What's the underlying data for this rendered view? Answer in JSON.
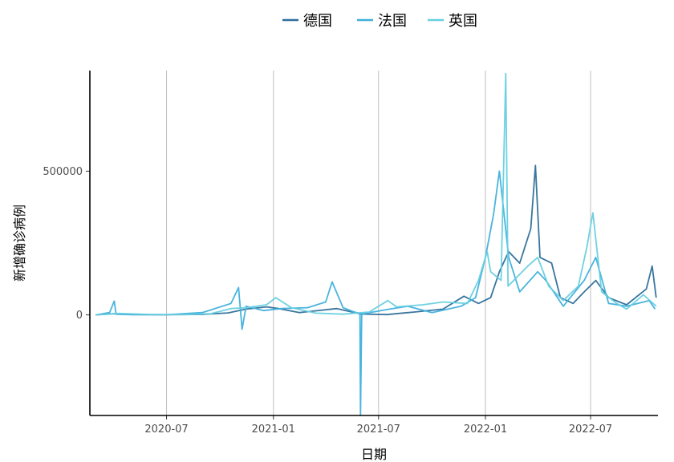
{
  "chart_data": {
    "type": "line",
    "xlabel": "日期",
    "ylabel": "新增确诊病例",
    "x_range": [
      "2020-02-20",
      "2022-10-25"
    ],
    "y_range": [
      -350000,
      850000
    ],
    "x_ticks": [
      "2020-07",
      "2021-01",
      "2021-07",
      "2022-01",
      "2022-07"
    ],
    "y_ticks": [
      0,
      500000
    ],
    "y_tick_labels": [
      "0",
      "500000"
    ],
    "grid": "vertical major",
    "legend_position": "top",
    "series": [
      {
        "name": "德国",
        "color": "#2e6f99",
        "points": [
          [
            "2020-03-01",
            0
          ],
          [
            "2020-04-01",
            4000
          ],
          [
            "2020-05-01",
            1000
          ],
          [
            "2020-07-01",
            500
          ],
          [
            "2020-09-01",
            1500
          ],
          [
            "2020-10-15",
            7000
          ],
          [
            "2020-11-15",
            20000
          ],
          [
            "2020-12-20",
            28000
          ],
          [
            "2021-01-10",
            22000
          ],
          [
            "2021-02-15",
            8000
          ],
          [
            "2021-04-20",
            22000
          ],
          [
            "2021-06-01",
            3000
          ],
          [
            "2021-07-15",
            1000
          ],
          [
            "2021-09-01",
            10000
          ],
          [
            "2021-10-20",
            20000
          ],
          [
            "2021-11-25",
            65000
          ],
          [
            "2021-12-20",
            40000
          ],
          [
            "2022-01-10",
            60000
          ],
          [
            "2022-01-25",
            150000
          ],
          [
            "2022-02-10",
            220000
          ],
          [
            "2022-03-01",
            180000
          ],
          [
            "2022-03-20",
            300000
          ],
          [
            "2022-03-28",
            520000
          ],
          [
            "2022-04-05",
            200000
          ],
          [
            "2022-04-25",
            180000
          ],
          [
            "2022-05-10",
            60000
          ],
          [
            "2022-06-01",
            40000
          ],
          [
            "2022-06-20",
            80000
          ],
          [
            "2022-07-10",
            120000
          ],
          [
            "2022-08-01",
            60000
          ],
          [
            "2022-09-01",
            35000
          ],
          [
            "2022-10-05",
            90000
          ],
          [
            "2022-10-15",
            170000
          ],
          [
            "2022-10-22",
            60000
          ]
        ]
      },
      {
        "name": "法国",
        "color": "#3fb0dc",
        "points": [
          [
            "2020-03-01",
            0
          ],
          [
            "2020-03-25",
            8000
          ],
          [
            "2020-04-02",
            48000
          ],
          [
            "2020-04-05",
            2000
          ],
          [
            "2020-05-01",
            1000
          ],
          [
            "2020-07-01",
            500
          ],
          [
            "2020-09-01",
            8000
          ],
          [
            "2020-10-20",
            40000
          ],
          [
            "2020-11-02",
            95000
          ],
          [
            "2020-11-08",
            -50000
          ],
          [
            "2020-11-15",
            30000
          ],
          [
            "2020-12-15",
            15000
          ],
          [
            "2021-01-15",
            22000
          ],
          [
            "2021-03-01",
            25000
          ],
          [
            "2021-04-01",
            45000
          ],
          [
            "2021-04-12",
            115000
          ],
          [
            "2021-05-01",
            25000
          ],
          [
            "2021-05-20",
            10000
          ],
          [
            "2021-05-30",
            5000
          ],
          [
            "2021-05-31",
            -350000
          ],
          [
            "2021-06-02",
            3000
          ],
          [
            "2021-07-20",
            20000
          ],
          [
            "2021-08-20",
            30000
          ],
          [
            "2021-10-01",
            8000
          ],
          [
            "2021-11-20",
            30000
          ],
          [
            "2021-12-15",
            60000
          ],
          [
            "2022-01-01",
            200000
          ],
          [
            "2022-01-15",
            350000
          ],
          [
            "2022-01-25",
            500000
          ],
          [
            "2022-02-10",
            200000
          ],
          [
            "2022-03-01",
            80000
          ],
          [
            "2022-04-01",
            150000
          ],
          [
            "2022-04-15",
            120000
          ],
          [
            "2022-05-15",
            30000
          ],
          [
            "2022-06-20",
            120000
          ],
          [
            "2022-07-10",
            200000
          ],
          [
            "2022-08-01",
            40000
          ],
          [
            "2022-09-01",
            30000
          ],
          [
            "2022-10-10",
            50000
          ],
          [
            "2022-10-20",
            20000
          ]
        ]
      },
      {
        "name": "英国",
        "color": "#66cfe0",
        "points": [
          [
            "2020-03-01",
            0
          ],
          [
            "2020-04-10",
            5000
          ],
          [
            "2020-06-01",
            1500
          ],
          [
            "2020-08-01",
            1000
          ],
          [
            "2020-09-15",
            4000
          ],
          [
            "2020-10-20",
            22000
          ],
          [
            "2020-11-15",
            25000
          ],
          [
            "2020-12-20",
            35000
          ],
          [
            "2021-01-05",
            60000
          ],
          [
            "2021-02-01",
            25000
          ],
          [
            "2021-03-15",
            6000
          ],
          [
            "2021-05-01",
            2500
          ],
          [
            "2021-06-15",
            10000
          ],
          [
            "2021-07-17",
            50000
          ],
          [
            "2021-08-01",
            28000
          ],
          [
            "2021-09-15",
            35000
          ],
          [
            "2021-10-20",
            45000
          ],
          [
            "2021-12-01",
            40000
          ],
          [
            "2021-12-20",
            120000
          ],
          [
            "2022-01-04",
            220000
          ],
          [
            "2022-01-10",
            150000
          ],
          [
            "2022-01-28",
            120000
          ],
          [
            "2022-02-05",
            840000
          ],
          [
            "2022-02-09",
            100000
          ],
          [
            "2022-03-15",
            170000
          ],
          [
            "2022-04-01",
            200000
          ],
          [
            "2022-04-20",
            100000
          ],
          [
            "2022-05-15",
            50000
          ],
          [
            "2022-06-10",
            100000
          ],
          [
            "2022-06-25",
            240000
          ],
          [
            "2022-07-05",
            355000
          ],
          [
            "2022-07-20",
            80000
          ],
          [
            "2022-08-15",
            40000
          ],
          [
            "2022-09-01",
            20000
          ],
          [
            "2022-09-30",
            70000
          ],
          [
            "2022-10-22",
            30000
          ]
        ]
      }
    ]
  }
}
